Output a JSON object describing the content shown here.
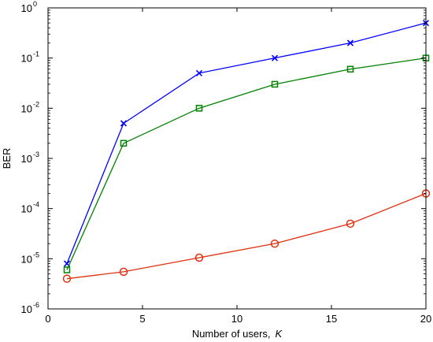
{
  "chart_data": {
    "type": "line",
    "title": "",
    "xlabel": "Number of users,",
    "xlabel_symbol": "K",
    "ylabel": "BER",
    "x_scale": "linear",
    "y_scale": "log",
    "xlim": [
      0,
      20
    ],
    "ylim": [
      1e-06,
      1
    ],
    "x_ticks": [
      0,
      5,
      10,
      15,
      20
    ],
    "x_tick_labels": [
      "0",
      "5",
      "10",
      "15",
      "20"
    ],
    "y_ticks": [
      1e-06,
      1e-05,
      0.0001,
      0.001,
      0.01,
      0.1,
      1
    ],
    "y_tick_labels": [
      {
        "base": "10",
        "exp": "-6"
      },
      {
        "base": "10",
        "exp": "-5"
      },
      {
        "base": "10",
        "exp": "-4"
      },
      {
        "base": "10",
        "exp": "-3"
      },
      {
        "base": "10",
        "exp": "-2"
      },
      {
        "base": "10",
        "exp": "-1"
      },
      {
        "base": "10",
        "exp": "0"
      }
    ],
    "grid": false,
    "x": [
      1,
      4,
      8,
      12,
      16,
      20
    ],
    "series": [
      {
        "color": "#0000ff",
        "marker": "x",
        "values": [
          8e-06,
          0.005,
          0.05,
          0.1,
          0.2,
          0.5
        ]
      },
      {
        "color": "#008000",
        "marker": "square",
        "values": [
          6e-06,
          0.002,
          0.01,
          0.03,
          0.06,
          0.1
        ]
      },
      {
        "color": "#e03010",
        "marker": "circle",
        "values": [
          4e-06,
          5.5e-06,
          1.05e-05,
          2e-05,
          5e-05,
          0.0002
        ]
      }
    ]
  }
}
